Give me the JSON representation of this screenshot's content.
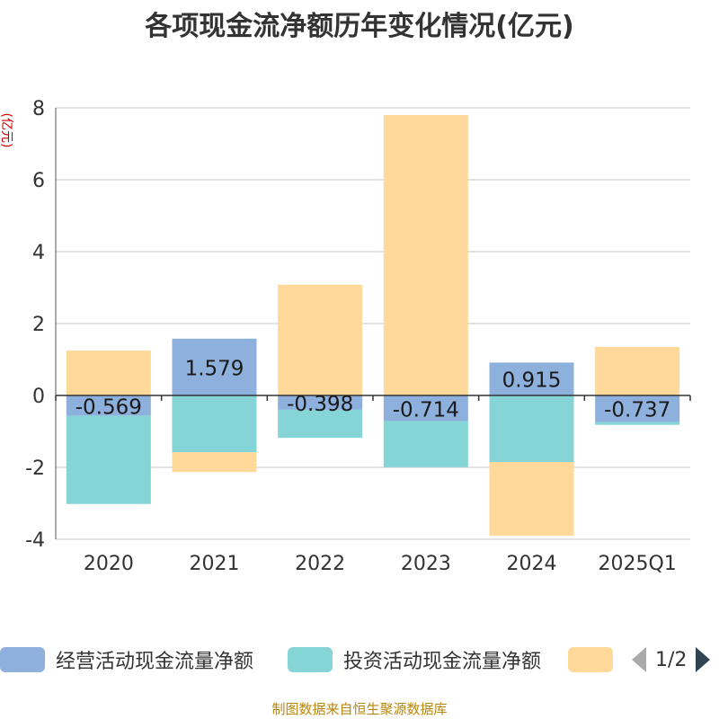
{
  "title": "各项现金流净额历年变化情况(亿元)",
  "source": "制图数据来自恒生聚源数据库",
  "legend": {
    "items": [
      {
        "label": "经营活动现金流量净额",
        "color": "#8eb0dc"
      },
      {
        "label": "投资活动现金流量净额",
        "color": "#85d5d6"
      },
      {
        "label": "",
        "color": "#fed999"
      }
    ],
    "page": "1/2"
  },
  "chart_data": {
    "type": "bar",
    "stacked": true,
    "categories": [
      "2020",
      "2021",
      "2022",
      "2023",
      "2024",
      "2025Q1"
    ],
    "ylabel": "(亿元)",
    "ylim": [
      -4,
      8
    ],
    "yticks": [
      -4,
      -2,
      0,
      2,
      4,
      6,
      8
    ],
    "grid": true,
    "series": [
      {
        "name": "经营活动现金流量净额",
        "color": "#8eb0dc",
        "values": [
          -0.569,
          1.579,
          -0.398,
          -0.714,
          0.915,
          -0.737
        ],
        "labels": [
          "-0.569",
          "1.579",
          "-0.398",
          "-0.714",
          "0.915",
          "-0.737"
        ]
      },
      {
        "name": "投资活动现金流量净额",
        "color": "#85d5d6",
        "values": [
          -2.45,
          -1.58,
          -0.78,
          -1.28,
          -1.85,
          -0.08
        ]
      },
      {
        "name": "",
        "color": "#fed999",
        "values": [
          1.25,
          -0.55,
          3.08,
          7.8,
          -2.05,
          1.35
        ]
      }
    ]
  }
}
